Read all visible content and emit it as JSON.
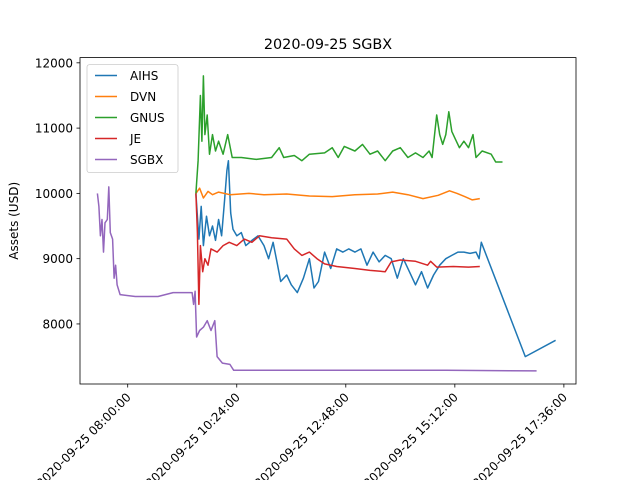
{
  "chart_data": {
    "type": "line",
    "title": "2020-09-25 SGBX",
    "xlabel": "",
    "ylabel": "Assets (USD)",
    "ylim": [
      7080,
      12080
    ],
    "xlim": [
      "2020-09-25 06:57",
      "2020-09-25 17:52"
    ],
    "yticks": [
      8000,
      9000,
      10000,
      11000,
      12000
    ],
    "xticks": [
      "2020-09-25 08:00:00",
      "2020-09-25 10:24:00",
      "2020-09-25 12:48:00",
      "2020-09-25 15:12:00",
      "2020-09-25 17:36:00"
    ],
    "grid": false,
    "legend": "top-left",
    "series": [
      {
        "name": "AIHS",
        "color": "#1f77b4",
        "points": [
          [
            "2020-09-25 09:30",
            10000
          ],
          [
            "2020-09-25 09:34",
            9300
          ],
          [
            "2020-09-25 09:37",
            9800
          ],
          [
            "2020-09-25 09:40",
            9200
          ],
          [
            "2020-09-25 09:44",
            9650
          ],
          [
            "2020-09-25 09:48",
            9350
          ],
          [
            "2020-09-25 09:52",
            9500
          ],
          [
            "2020-09-25 09:56",
            9280
          ],
          [
            "2020-09-25 10:00",
            9600
          ],
          [
            "2020-09-25 10:04",
            9350
          ],
          [
            "2020-09-25 10:08",
            9900
          ],
          [
            "2020-09-25 10:11",
            10350
          ],
          [
            "2020-09-25 10:13",
            10500
          ],
          [
            "2020-09-25 10:16",
            9700
          ],
          [
            "2020-09-25 10:19",
            9450
          ],
          [
            "2020-09-25 10:24",
            9350
          ],
          [
            "2020-09-25 10:30",
            9400
          ],
          [
            "2020-09-25 10:36",
            9200
          ],
          [
            "2020-09-25 10:44",
            9280
          ],
          [
            "2020-09-25 10:52",
            9350
          ],
          [
            "2020-09-25 11:00",
            9200
          ],
          [
            "2020-09-25 11:06",
            9000
          ],
          [
            "2020-09-25 11:12",
            9250
          ],
          [
            "2020-09-25 11:18",
            8900
          ],
          [
            "2020-09-25 11:22",
            8650
          ],
          [
            "2020-09-25 11:30",
            8750
          ],
          [
            "2020-09-25 11:36",
            8600
          ],
          [
            "2020-09-25 11:44",
            8480
          ],
          [
            "2020-09-25 11:52",
            8700
          ],
          [
            "2020-09-25 12:00",
            9000
          ],
          [
            "2020-09-25 12:06",
            8550
          ],
          [
            "2020-09-25 12:12",
            8650
          ],
          [
            "2020-09-25 12:20",
            9100
          ],
          [
            "2020-09-25 12:28",
            8850
          ],
          [
            "2020-09-25 12:36",
            9150
          ],
          [
            "2020-09-25 12:44",
            9100
          ],
          [
            "2020-09-25 12:52",
            9150
          ],
          [
            "2020-09-25 13:00",
            9100
          ],
          [
            "2020-09-25 13:08",
            9150
          ],
          [
            "2020-09-25 13:16",
            8900
          ],
          [
            "2020-09-25 13:24",
            9100
          ],
          [
            "2020-09-25 13:32",
            8950
          ],
          [
            "2020-09-25 13:40",
            9050
          ],
          [
            "2020-09-25 13:48",
            9000
          ],
          [
            "2020-09-25 13:56",
            8700
          ],
          [
            "2020-09-25 14:04",
            9000
          ],
          [
            "2020-09-25 14:12",
            8800
          ],
          [
            "2020-09-25 14:20",
            8600
          ],
          [
            "2020-09-25 14:28",
            8800
          ],
          [
            "2020-09-25 14:36",
            8550
          ],
          [
            "2020-09-25 14:44",
            8750
          ],
          [
            "2020-09-25 14:52",
            8900
          ],
          [
            "2020-09-25 15:00",
            9000
          ],
          [
            "2020-09-25 15:08",
            9050
          ],
          [
            "2020-09-25 15:16",
            9100
          ],
          [
            "2020-09-25 15:24",
            9100
          ],
          [
            "2020-09-25 15:32",
            9080
          ],
          [
            "2020-09-25 15:40",
            9100
          ],
          [
            "2020-09-25 15:44",
            9000
          ],
          [
            "2020-09-25 15:47",
            9250
          ],
          [
            "2020-09-25 16:45",
            7500
          ],
          [
            "2020-09-25 17:25",
            7750
          ]
        ]
      },
      {
        "name": "DVN",
        "color": "#ff7f0e",
        "points": [
          [
            "2020-09-25 09:30",
            10000
          ],
          [
            "2020-09-25 09:35",
            10080
          ],
          [
            "2020-09-25 09:40",
            9930
          ],
          [
            "2020-09-25 09:46",
            10030
          ],
          [
            "2020-09-25 09:52",
            9980
          ],
          [
            "2020-09-25 10:00",
            10020
          ],
          [
            "2020-09-25 10:15",
            9980
          ],
          [
            "2020-09-25 10:40",
            10000
          ],
          [
            "2020-09-25 11:00",
            9980
          ],
          [
            "2020-09-25 11:30",
            9990
          ],
          [
            "2020-09-25 12:00",
            9960
          ],
          [
            "2020-09-25 12:30",
            9950
          ],
          [
            "2020-09-25 13:00",
            9980
          ],
          [
            "2020-09-25 13:30",
            9990
          ],
          [
            "2020-09-25 13:50",
            10020
          ],
          [
            "2020-09-25 14:10",
            9980
          ],
          [
            "2020-09-25 14:30",
            9920
          ],
          [
            "2020-09-25 14:50",
            9970
          ],
          [
            "2020-09-25 15:05",
            10040
          ],
          [
            "2020-09-25 15:15",
            10000
          ],
          [
            "2020-09-25 15:25",
            9950
          ],
          [
            "2020-09-25 15:35",
            9900
          ],
          [
            "2020-09-25 15:45",
            9920
          ]
        ]
      },
      {
        "name": "GNUS",
        "color": "#2ca02c",
        "points": [
          [
            "2020-09-25 09:30",
            10000
          ],
          [
            "2020-09-25 09:33",
            10500
          ],
          [
            "2020-09-25 09:36",
            11500
          ],
          [
            "2020-09-25 09:38",
            10800
          ],
          [
            "2020-09-25 09:40",
            11800
          ],
          [
            "2020-09-25 09:42",
            10900
          ],
          [
            "2020-09-25 09:45",
            11200
          ],
          [
            "2020-09-25 09:48",
            10600
          ],
          [
            "2020-09-25 09:52",
            10900
          ],
          [
            "2020-09-25 09:56",
            10650
          ],
          [
            "2020-09-25 10:00",
            10800
          ],
          [
            "2020-09-25 10:06",
            10600
          ],
          [
            "2020-09-25 10:12",
            10900
          ],
          [
            "2020-09-25 10:18",
            10550
          ],
          [
            "2020-09-25 10:30",
            10550
          ],
          [
            "2020-09-25 10:50",
            10520
          ],
          [
            "2020-09-25 11:10",
            10550
          ],
          [
            "2020-09-25 11:20",
            10700
          ],
          [
            "2020-09-25 11:26",
            10550
          ],
          [
            "2020-09-25 11:40",
            10580
          ],
          [
            "2020-09-25 11:50",
            10500
          ],
          [
            "2020-09-25 12:00",
            10600
          ],
          [
            "2020-09-25 12:20",
            10620
          ],
          [
            "2020-09-25 12:30",
            10700
          ],
          [
            "2020-09-25 12:38",
            10550
          ],
          [
            "2020-09-25 12:46",
            10720
          ],
          [
            "2020-09-25 13:00",
            10650
          ],
          [
            "2020-09-25 13:10",
            10750
          ],
          [
            "2020-09-25 13:20",
            10600
          ],
          [
            "2020-09-25 13:30",
            10650
          ],
          [
            "2020-09-25 13:40",
            10500
          ],
          [
            "2020-09-25 13:50",
            10650
          ],
          [
            "2020-09-25 14:00",
            10700
          ],
          [
            "2020-09-25 14:10",
            10550
          ],
          [
            "2020-09-25 14:20",
            10620
          ],
          [
            "2020-09-25 14:30",
            10550
          ],
          [
            "2020-09-25 14:38",
            10650
          ],
          [
            "2020-09-25 14:42",
            10550
          ],
          [
            "2020-09-25 14:48",
            11200
          ],
          [
            "2020-09-25 14:52",
            10900
          ],
          [
            "2020-09-25 14:56",
            10750
          ],
          [
            "2020-09-25 15:00",
            10900
          ],
          [
            "2020-09-25 15:04",
            11250
          ],
          [
            "2020-09-25 15:08",
            10950
          ],
          [
            "2020-09-25 15:12",
            10850
          ],
          [
            "2020-09-25 15:18",
            10700
          ],
          [
            "2020-09-25 15:24",
            10800
          ],
          [
            "2020-09-25 15:30",
            10700
          ],
          [
            "2020-09-25 15:36",
            10900
          ],
          [
            "2020-09-25 15:40",
            10550
          ],
          [
            "2020-09-25 15:48",
            10650
          ],
          [
            "2020-09-25 16:00",
            10600
          ],
          [
            "2020-09-25 16:06",
            10480
          ],
          [
            "2020-09-25 16:15",
            10480
          ]
        ]
      },
      {
        "name": "JE",
        "color": "#d62728",
        "points": [
          [
            "2020-09-25 09:30",
            10000
          ],
          [
            "2020-09-25 09:32",
            9400
          ],
          [
            "2020-09-25 09:34",
            8300
          ],
          [
            "2020-09-25 09:36",
            9200
          ],
          [
            "2020-09-25 09:39",
            8800
          ],
          [
            "2020-09-25 09:42",
            9000
          ],
          [
            "2020-09-25 09:46",
            8900
          ],
          [
            "2020-09-25 09:50",
            9150
          ],
          [
            "2020-09-25 09:58",
            9100
          ],
          [
            "2020-09-25 10:06",
            9200
          ],
          [
            "2020-09-25 10:14",
            9250
          ],
          [
            "2020-09-25 10:24",
            9200
          ],
          [
            "2020-09-25 10:34",
            9300
          ],
          [
            "2020-09-25 10:44",
            9250
          ],
          [
            "2020-09-25 10:54",
            9350
          ],
          [
            "2020-09-25 11:10",
            9320
          ],
          [
            "2020-09-25 11:30",
            9300
          ],
          [
            "2020-09-25 11:40",
            9150
          ],
          [
            "2020-09-25 11:50",
            9050
          ],
          [
            "2020-09-25 12:00",
            9100
          ],
          [
            "2020-09-25 12:10",
            9000
          ],
          [
            "2020-09-25 12:20",
            8920
          ],
          [
            "2020-09-25 12:36",
            8880
          ],
          [
            "2020-09-25 13:00",
            8850
          ],
          [
            "2020-09-25 13:20",
            8820
          ],
          [
            "2020-09-25 13:40",
            8800
          ],
          [
            "2020-09-25 13:48",
            8950
          ],
          [
            "2020-09-25 14:00",
            8980
          ],
          [
            "2020-09-25 14:20",
            8960
          ],
          [
            "2020-09-25 14:36",
            8900
          ],
          [
            "2020-09-25 14:40",
            8960
          ],
          [
            "2020-09-25 14:48",
            8870
          ],
          [
            "2020-09-25 15:10",
            8880
          ],
          [
            "2020-09-25 15:30",
            8870
          ],
          [
            "2020-09-25 15:45",
            8880
          ]
        ]
      },
      {
        "name": "SGBX",
        "color": "#9467bd",
        "points": [
          [
            "2020-09-25 07:20",
            10000
          ],
          [
            "2020-09-25 07:22",
            9800
          ],
          [
            "2020-09-25 07:24",
            9350
          ],
          [
            "2020-09-25 07:26",
            9600
          ],
          [
            "2020-09-25 07:28",
            9100
          ],
          [
            "2020-09-25 07:30",
            9550
          ],
          [
            "2020-09-25 07:33",
            9600
          ],
          [
            "2020-09-25 07:35",
            10100
          ],
          [
            "2020-09-25 07:37",
            9400
          ],
          [
            "2020-09-25 07:40",
            9300
          ],
          [
            "2020-09-25 07:42",
            8700
          ],
          [
            "2020-09-25 07:44",
            8900
          ],
          [
            "2020-09-25 07:46",
            8600
          ],
          [
            "2020-09-25 07:50",
            8450
          ],
          [
            "2020-09-25 08:10",
            8420
          ],
          [
            "2020-09-25 08:40",
            8420
          ],
          [
            "2020-09-25 09:00",
            8480
          ],
          [
            "2020-09-25 09:25",
            8480
          ],
          [
            "2020-09-25 09:27",
            8300
          ],
          [
            "2020-09-25 09:29",
            8500
          ],
          [
            "2020-09-25 09:31",
            7800
          ],
          [
            "2020-09-25 09:35",
            7900
          ],
          [
            "2020-09-25 09:40",
            7950
          ],
          [
            "2020-09-25 09:45",
            8050
          ],
          [
            "2020-09-25 09:50",
            7900
          ],
          [
            "2020-09-25 09:55",
            8050
          ],
          [
            "2020-09-25 09:58",
            7500
          ],
          [
            "2020-09-25 10:05",
            7400
          ],
          [
            "2020-09-25 10:15",
            7380
          ],
          [
            "2020-09-25 10:20",
            7290
          ],
          [
            "2020-09-25 11:00",
            7290
          ],
          [
            "2020-09-25 13:00",
            7290
          ],
          [
            "2020-09-25 15:00",
            7290
          ],
          [
            "2020-09-25 17:00",
            7280
          ]
        ]
      }
    ]
  }
}
